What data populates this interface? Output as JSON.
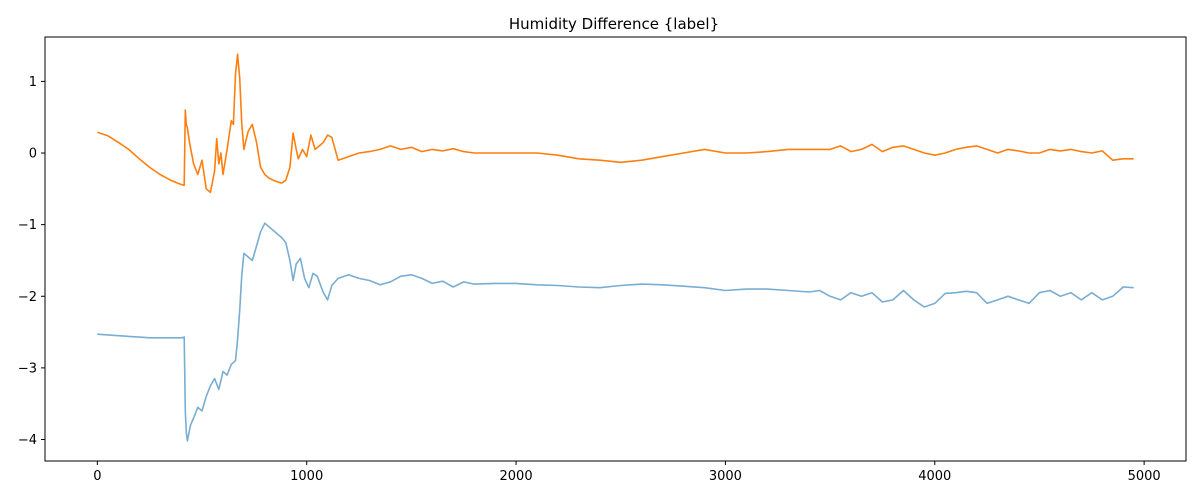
{
  "chart_data": {
    "type": "line",
    "title": "Humidity Difference {label}",
    "xlabel": "",
    "ylabel": "",
    "xlim": [
      -250,
      5200
    ],
    "ylim": [
      -4.3,
      1.62
    ],
    "xticks": [
      0,
      1000,
      2000,
      3000,
      4000,
      5000
    ],
    "yticks": [
      -4,
      -3,
      -2,
      -1,
      0,
      1
    ],
    "ytick_labels": [
      "−4",
      "−3",
      "−2",
      "−1",
      "0",
      "1"
    ],
    "grid": false,
    "legend": "none",
    "series": [
      {
        "color": "#1f77b4",
        "opacity": 0.6,
        "x": [
          0,
          50,
          100,
          150,
          200,
          250,
          300,
          350,
          400,
          415,
          420,
          425,
          430,
          445,
          460,
          480,
          500,
          520,
          540,
          560,
          580,
          600,
          620,
          640,
          660,
          670,
          680,
          690,
          700,
          720,
          740,
          760,
          780,
          800,
          820,
          840,
          860,
          880,
          900,
          920,
          935,
          950,
          970,
          990,
          1010,
          1030,
          1050,
          1080,
          1100,
          1120,
          1150,
          1200,
          1250,
          1300,
          1350,
          1400,
          1450,
          1500,
          1550,
          1600,
          1650,
          1700,
          1750,
          1800,
          1900,
          2000,
          2100,
          2200,
          2300,
          2400,
          2500,
          2600,
          2700,
          2800,
          2900,
          3000,
          3100,
          3200,
          3300,
          3400,
          3450,
          3500,
          3550,
          3600,
          3650,
          3700,
          3750,
          3800,
          3850,
          3900,
          3950,
          4000,
          4050,
          4100,
          4150,
          4200,
          4250,
          4300,
          4350,
          4400,
          4450,
          4500,
          4550,
          4600,
          4650,
          4700,
          4750,
          4800,
          4850,
          4900,
          4950
        ],
        "y": [
          -2.53,
          -2.54,
          -2.55,
          -2.56,
          -2.57,
          -2.58,
          -2.58,
          -2.58,
          -2.58,
          -2.57,
          -3.6,
          -3.9,
          -4.02,
          -3.8,
          -3.7,
          -3.55,
          -3.6,
          -3.4,
          -3.25,
          -3.15,
          -3.3,
          -3.05,
          -3.1,
          -2.95,
          -2.9,
          -2.6,
          -2.2,
          -1.7,
          -1.4,
          -1.45,
          -1.5,
          -1.3,
          -1.1,
          -0.98,
          -1.03,
          -1.08,
          -1.13,
          -1.18,
          -1.25,
          -1.5,
          -1.78,
          -1.55,
          -1.47,
          -1.75,
          -1.88,
          -1.68,
          -1.72,
          -1.95,
          -2.05,
          -1.85,
          -1.75,
          -1.7,
          -1.75,
          -1.78,
          -1.84,
          -1.8,
          -1.72,
          -1.7,
          -1.75,
          -1.82,
          -1.79,
          -1.87,
          -1.8,
          -1.83,
          -1.82,
          -1.82,
          -1.84,
          -1.85,
          -1.87,
          -1.88,
          -1.85,
          -1.83,
          -1.84,
          -1.86,
          -1.88,
          -1.92,
          -1.9,
          -1.9,
          -1.92,
          -1.94,
          -1.92,
          -2.0,
          -2.05,
          -1.95,
          -2.0,
          -1.95,
          -2.08,
          -2.05,
          -1.92,
          -2.05,
          -2.15,
          -2.1,
          -1.96,
          -1.95,
          -1.93,
          -1.95,
          -2.1,
          -2.05,
          -2.0,
          -2.05,
          -2.1,
          -1.95,
          -1.92,
          -2.0,
          -1.95,
          -2.05,
          -1.95,
          -2.05,
          -2.0,
          -1.87,
          -1.88
        ]
      },
      {
        "color": "#ff7f0e",
        "opacity": 1,
        "x": [
          0,
          50,
          100,
          150,
          200,
          250,
          300,
          350,
          400,
          415,
          420,
          425,
          430,
          440,
          460,
          480,
          500,
          520,
          540,
          560,
          570,
          580,
          590,
          600,
          620,
          640,
          650,
          660,
          670,
          675,
          680,
          690,
          700,
          720,
          740,
          760,
          780,
          800,
          820,
          840,
          860,
          880,
          900,
          920,
          935,
          950,
          960,
          980,
          1000,
          1020,
          1040,
          1060,
          1080,
          1100,
          1120,
          1150,
          1200,
          1250,
          1300,
          1350,
          1400,
          1450,
          1500,
          1550,
          1600,
          1650,
          1700,
          1750,
          1800,
          1900,
          2000,
          2100,
          2200,
          2300,
          2400,
          2500,
          2600,
          2700,
          2800,
          2900,
          3000,
          3100,
          3200,
          3300,
          3400,
          3500,
          3550,
          3600,
          3650,
          3700,
          3750,
          3800,
          3850,
          3900,
          3950,
          4000,
          4050,
          4100,
          4150,
          4200,
          4250,
          4300,
          4350,
          4400,
          4450,
          4500,
          4550,
          4600,
          4650,
          4700,
          4750,
          4800,
          4850,
          4900,
          4950
        ],
        "y": [
          0.29,
          0.24,
          0.15,
          0.05,
          -0.08,
          -0.2,
          -0.3,
          -0.38,
          -0.44,
          -0.45,
          0.6,
          0.4,
          0.35,
          0.15,
          -0.15,
          -0.3,
          -0.1,
          -0.5,
          -0.55,
          -0.25,
          0.2,
          -0.15,
          0.0,
          -0.3,
          0.05,
          0.45,
          0.4,
          1.1,
          1.38,
          1.2,
          1.05,
          0.4,
          0.05,
          0.3,
          0.4,
          0.15,
          -0.2,
          -0.3,
          -0.35,
          -0.38,
          -0.4,
          -0.42,
          -0.38,
          -0.2,
          0.28,
          0.05,
          -0.08,
          0.05,
          -0.05,
          0.25,
          0.05,
          0.1,
          0.15,
          0.25,
          0.22,
          -0.1,
          -0.05,
          0.0,
          0.02,
          0.05,
          0.1,
          0.05,
          0.08,
          0.02,
          0.05,
          0.03,
          0.06,
          0.02,
          0.0,
          0.0,
          0.0,
          0.0,
          -0.03,
          -0.08,
          -0.1,
          -0.13,
          -0.1,
          -0.05,
          0.0,
          0.05,
          0.0,
          0.0,
          0.02,
          0.05,
          0.05,
          0.05,
          0.1,
          0.02,
          0.05,
          0.12,
          0.02,
          0.08,
          0.1,
          0.05,
          0.0,
          -0.03,
          0.0,
          0.05,
          0.08,
          0.1,
          0.05,
          0.0,
          0.05,
          0.03,
          0.0,
          0.0,
          0.05,
          0.03,
          0.05,
          0.02,
          0.0,
          0.03,
          -0.1,
          -0.08,
          -0.08
        ]
      }
    ]
  }
}
